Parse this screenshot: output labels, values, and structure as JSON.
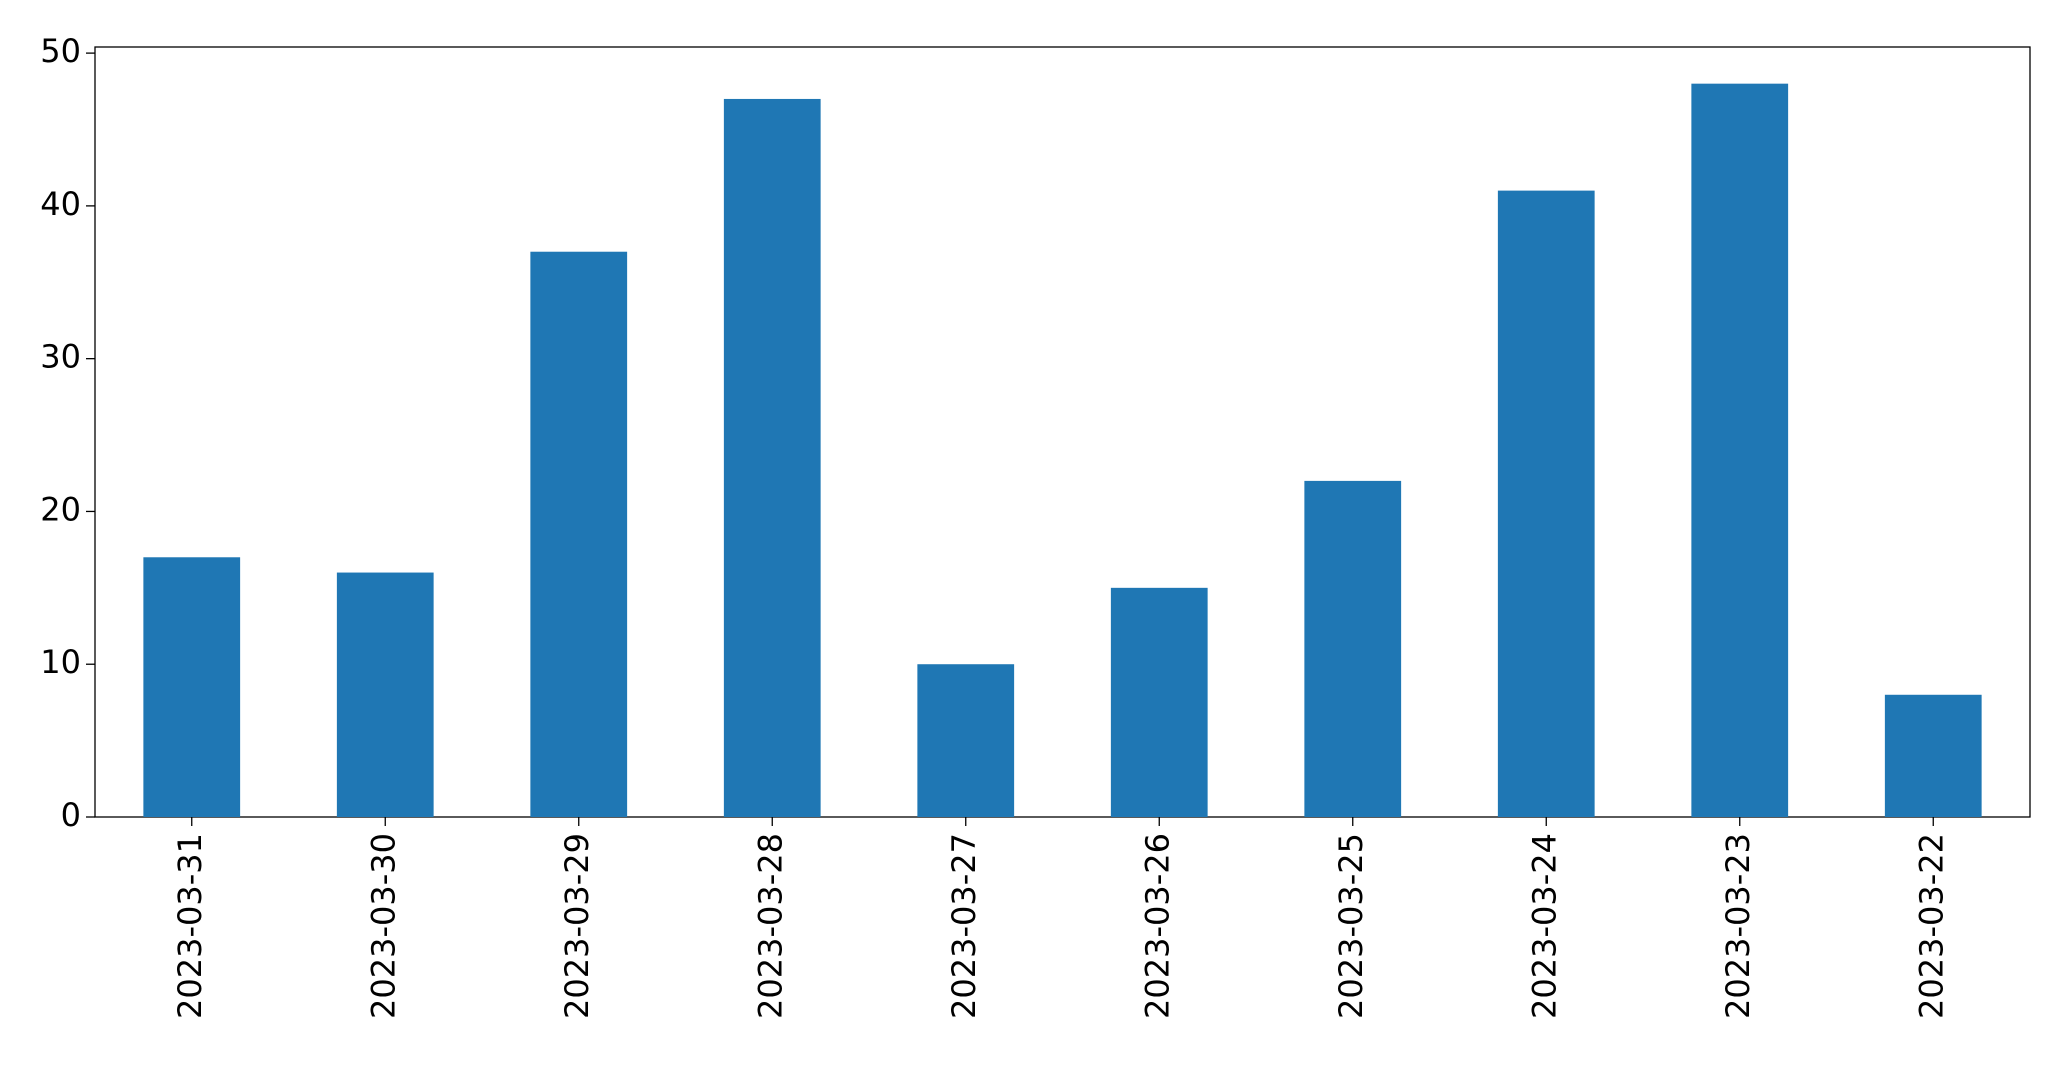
{
  "chart_data": {
    "type": "bar",
    "categories": [
      "2023-03-31",
      "2023-03-30",
      "2023-03-29",
      "2023-03-28",
      "2023-03-27",
      "2023-03-26",
      "2023-03-25",
      "2023-03-24",
      "2023-03-23",
      "2023-03-22"
    ],
    "values": [
      17,
      16,
      37,
      47,
      10,
      15,
      22,
      41,
      48,
      8
    ],
    "color": "#1f77b4",
    "ylim": [
      0,
      50.4
    ],
    "yticks": [
      0,
      10,
      20,
      30,
      40,
      50
    ],
    "grid": false
  }
}
